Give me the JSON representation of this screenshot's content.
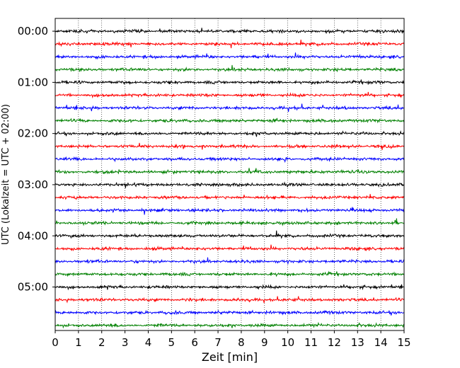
{
  "chart_data": {
    "type": "line",
    "xlabel": "Zeit  [min]",
    "ylabel": "UTC (Lokalzeit = UTC + 02:00)",
    "xlim": [
      0,
      15
    ],
    "x_ticks": [
      "0",
      "1",
      "2",
      "3",
      "4",
      "5",
      "6",
      "7",
      "8",
      "9",
      "10",
      "11",
      "12",
      "13",
      "14",
      "15"
    ],
    "y_ticks": [
      {
        "label": "00:00",
        "hours": 0
      },
      {
        "label": "01:00",
        "hours": 1
      },
      {
        "label": "02:00",
        "hours": 2
      },
      {
        "label": "03:00",
        "hours": 3
      },
      {
        "label": "04:00",
        "hours": 4
      },
      {
        "label": "05:00",
        "hours": 5
      }
    ],
    "ylim_hours": [
      -0.25,
      5.85
    ],
    "trace_interval_minutes": 15,
    "trace_count": 24,
    "trace_colors": [
      "#000000",
      "#ff0000",
      "#0000ff",
      "#008000"
    ],
    "grid": {
      "x": "dotted",
      "y": "none"
    }
  }
}
